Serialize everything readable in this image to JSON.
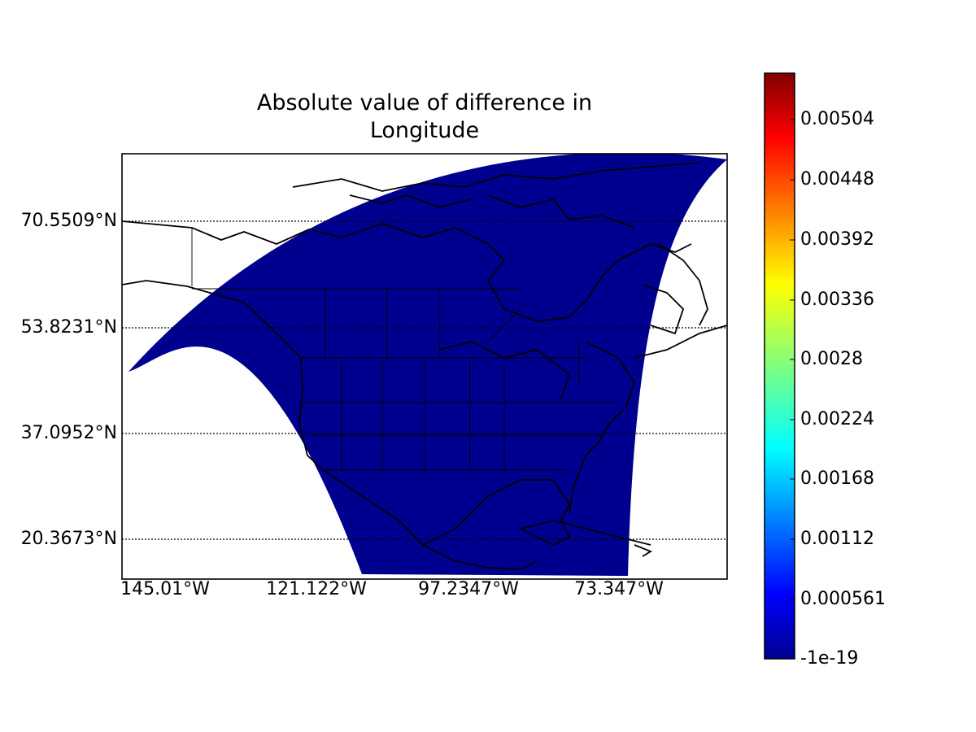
{
  "title": [
    "Absolute value of difference in",
    "Longitude"
  ],
  "map": {
    "field_color": "#00008f",
    "parallels": [
      "70.5509°N",
      "53.8231°N",
      "37.0952°N",
      "20.3673°N"
    ],
    "meridians": [
      "145.01°W",
      "121.122°W",
      "97.2347°W",
      "73.347°W"
    ]
  },
  "colorbar": {
    "colormap": "jet",
    "ticks": [
      "0.00504",
      "0.00448",
      "0.00392",
      "0.00336",
      "0.0028",
      "0.00224",
      "0.00168",
      "0.00112",
      "0.000561",
      "-1e-19"
    ]
  }
}
